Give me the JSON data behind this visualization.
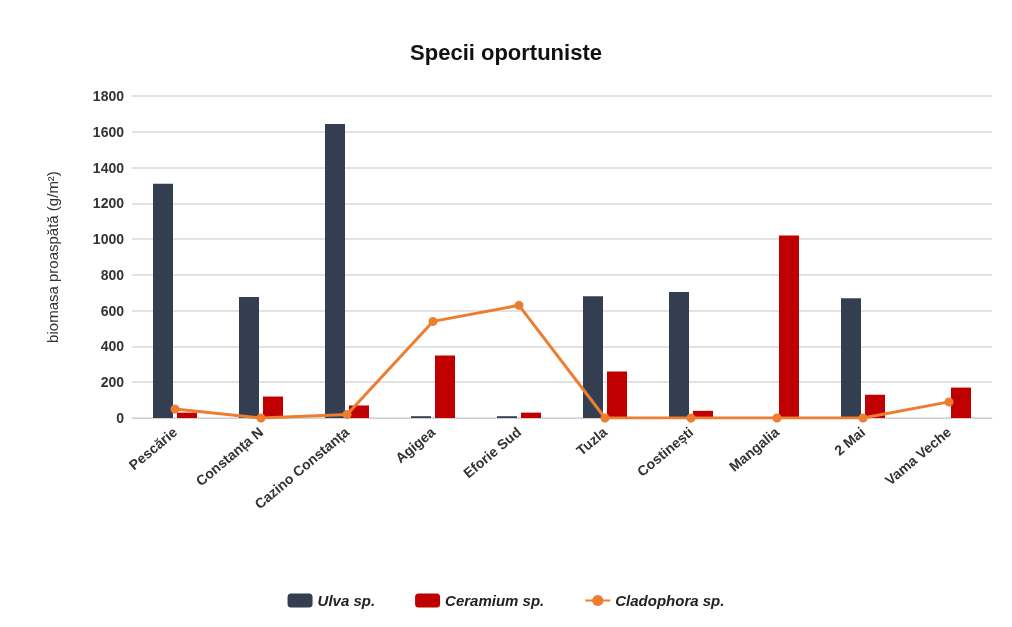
{
  "chart_data": {
    "type": "bar",
    "title": "Specii oportuniste",
    "ylabel": "biomasa proaspătă (g/m²)",
    "categories": [
      "Pescărie",
      "Constanța N",
      "Cazino Constanța",
      "Agigea",
      "Eforie Sud",
      "Tuzla",
      "Costinești",
      "Mangalia",
      "2 Mai",
      "Vama Veche"
    ],
    "series": [
      {
        "name": "Ulva sp.",
        "color": "#333f50",
        "values": [
          1310,
          676,
          1643,
          10,
          10,
          680,
          704,
          0,
          670,
          0
        ]
      },
      {
        "name": "Ceramium sp.",
        "color": "#c00000",
        "values": [
          30,
          120,
          70,
          350,
          30,
          260,
          40,
          1020,
          130,
          170
        ]
      },
      {
        "name": "Cladophora sp.",
        "type": "line",
        "color": "#ed7d31",
        "marker": "circle",
        "values": [
          50,
          0,
          20,
          540,
          630,
          0,
          0,
          0,
          0,
          90
        ]
      }
    ],
    "ylim": [
      0,
      1800
    ],
    "yticks": [
      0,
      200,
      400,
      600,
      800,
      1000,
      1200,
      1400,
      1600,
      1800
    ],
    "grid": "y",
    "legend": "bottom"
  }
}
